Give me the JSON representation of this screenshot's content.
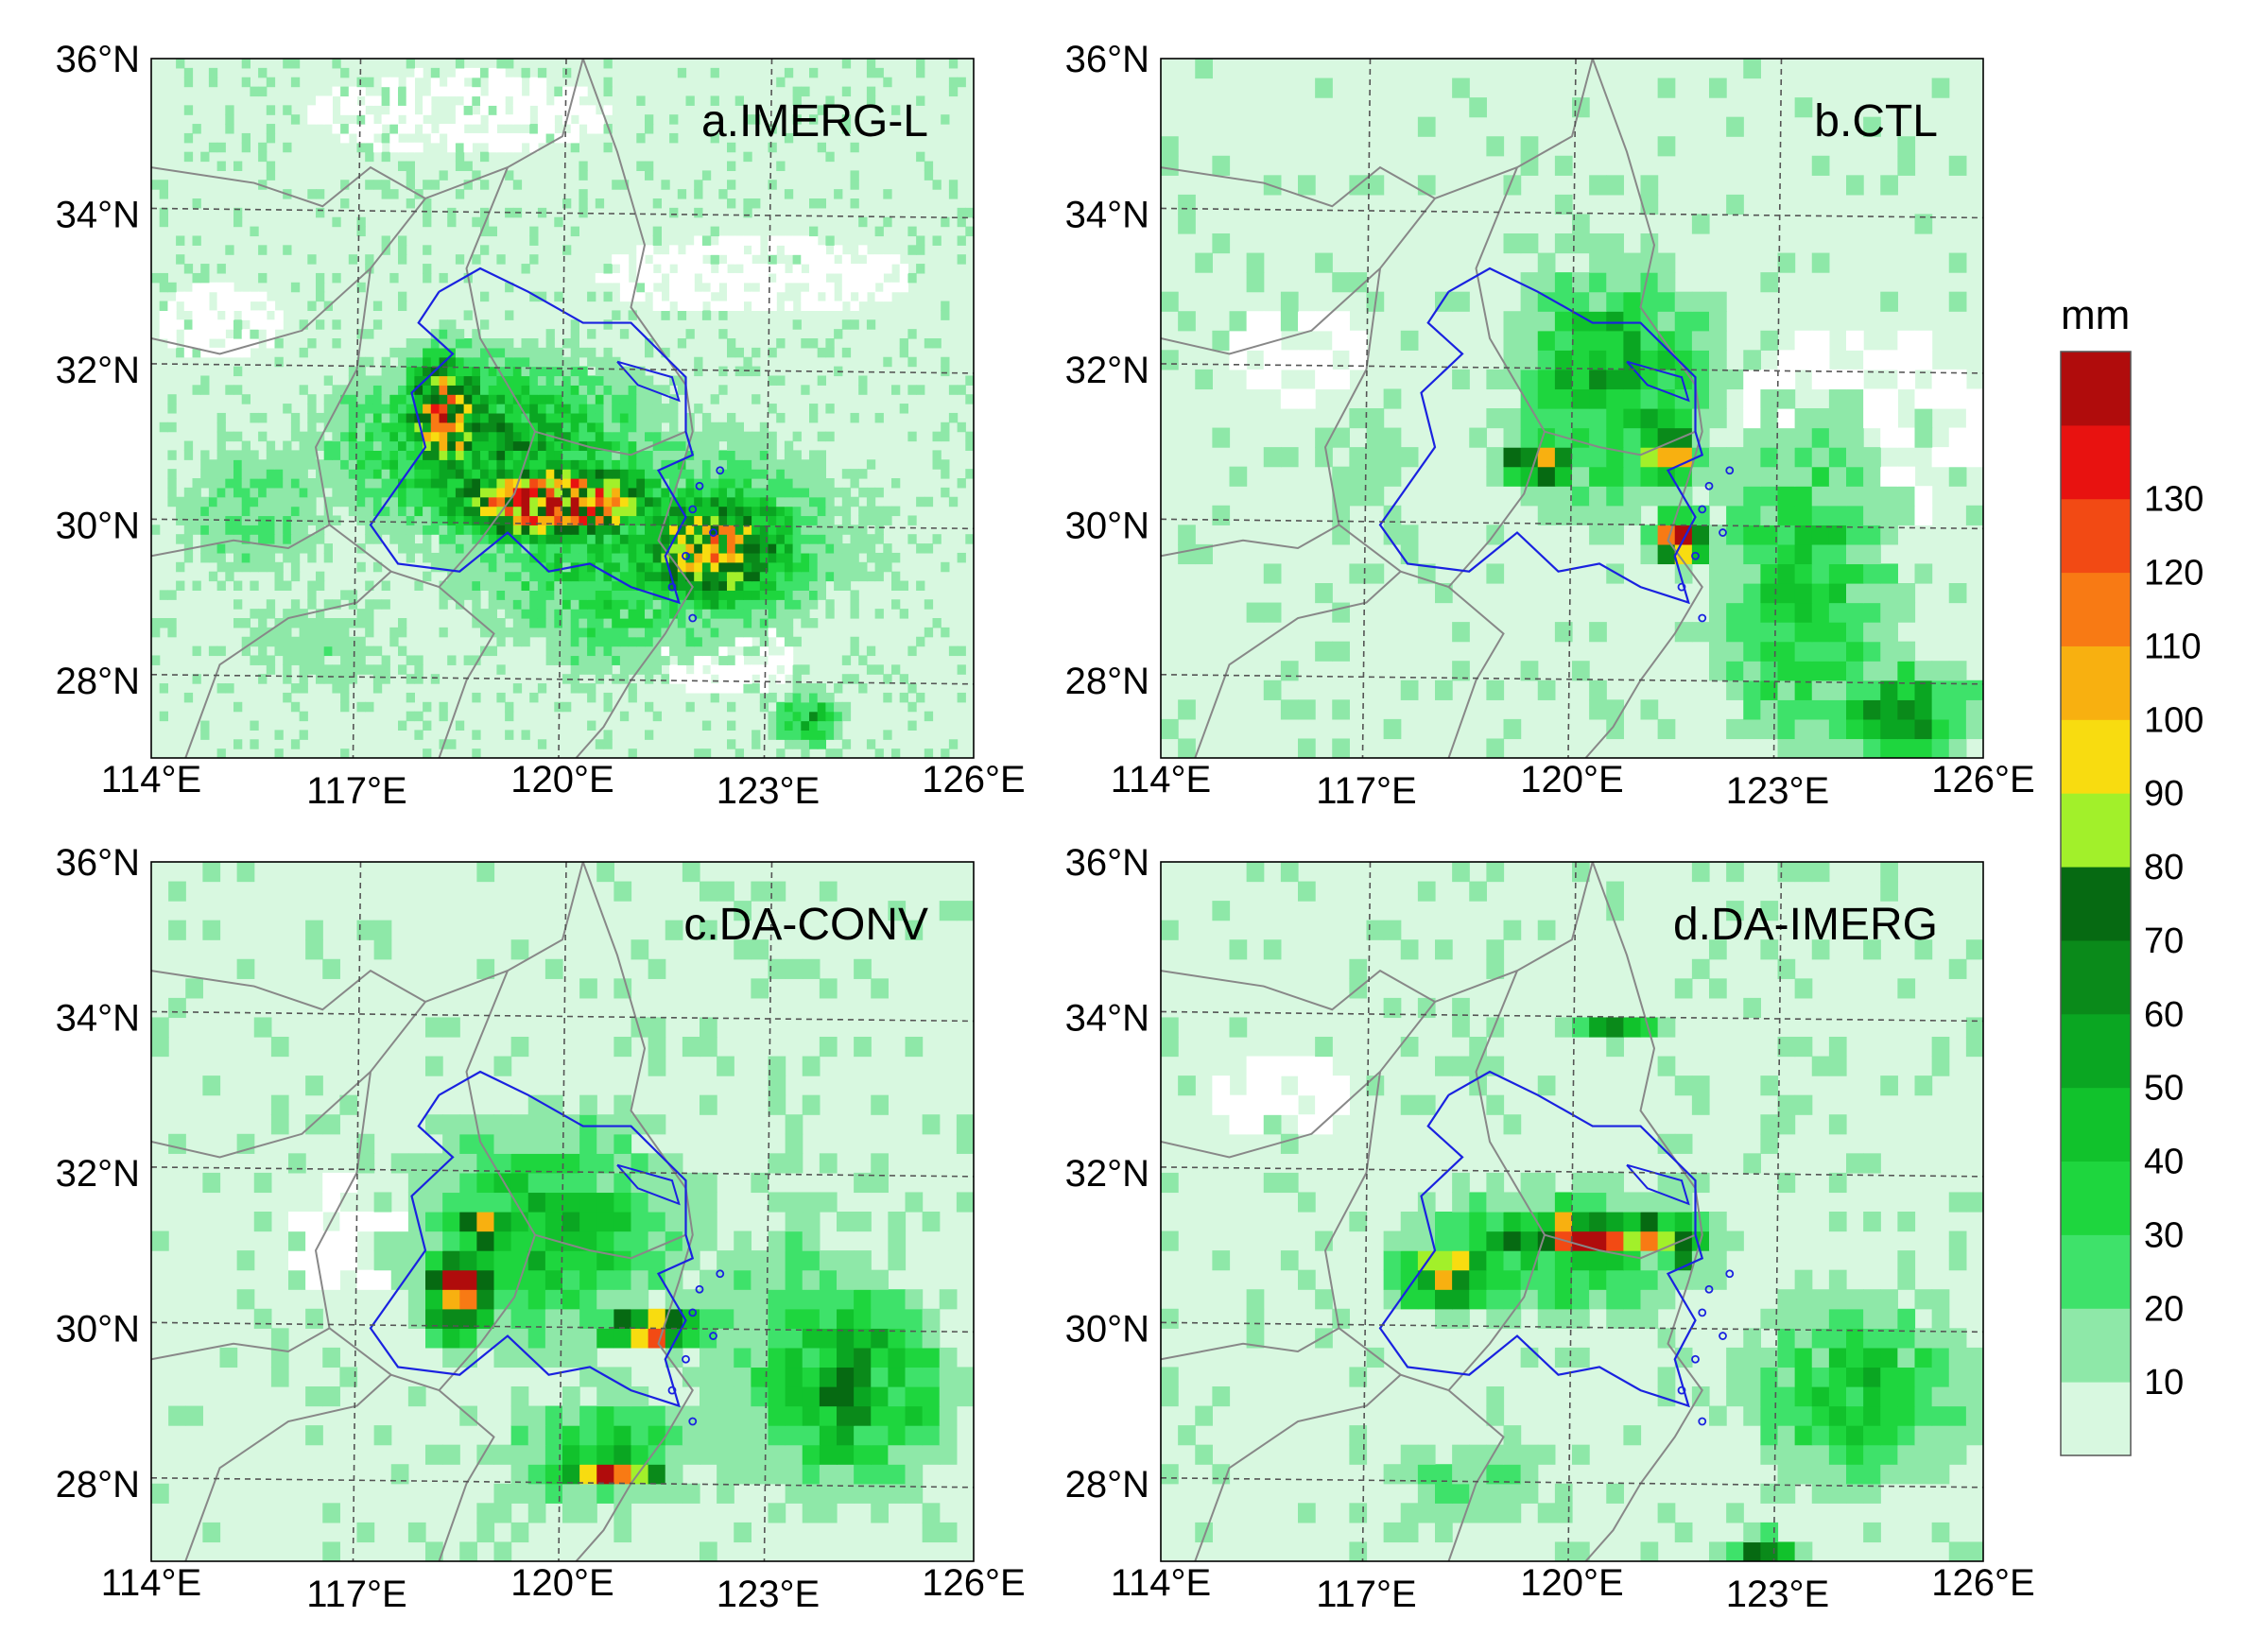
{
  "figure": {
    "panels": [
      {
        "id": "a",
        "label": "a.IMERG-L"
      },
      {
        "id": "b",
        "label": "b.CTL"
      },
      {
        "id": "c",
        "label": "c.DA-CONV"
      },
      {
        "id": "d",
        "label": "d.DA-IMERG"
      }
    ],
    "lat_ticks": [
      "36°N",
      "34°N",
      "32°N",
      "30°N",
      "28°N"
    ],
    "lon_ticks": [
      "114°E",
      "117°E",
      "120°E",
      "123°E",
      "126°E"
    ],
    "colorbar": {
      "unit": "mm",
      "ticks": [
        "10",
        "20",
        "30",
        "40",
        "50",
        "60",
        "70",
        "80",
        "90",
        "100",
        "110",
        "120",
        "130"
      ],
      "colors": [
        "#d8f8e0",
        "#8ee8a8",
        "#3ee26a",
        "#1ed63e",
        "#11c22c",
        "#0aa622",
        "#0a8a1a",
        "#066a12",
        "#a2f02a",
        "#f8dc10",
        "#f8b010",
        "#f87a14",
        "#f24a14",
        "#e81210",
        "#b00c0c"
      ]
    },
    "colors": {
      "province_border": "#888888",
      "basin_outline": "#1a22e0",
      "gridline": "#555555",
      "background": "#d8f8e0"
    },
    "panel_data": {
      "a": {
        "blobs": [
          [
            119.9,
            30.3,
            1.7,
            0.55,
            135
          ],
          [
            118.3,
            31.4,
            0.7,
            0.9,
            105
          ],
          [
            122.2,
            29.7,
            1.4,
            0.9,
            95
          ],
          [
            119.0,
            31.0,
            2.6,
            1.3,
            55
          ],
          [
            121.3,
            29.8,
            3.4,
            1.6,
            40
          ],
          [
            115.5,
            30.2,
            1.6,
            1.2,
            22
          ],
          [
            116.5,
            28.5,
            2.0,
            1.0,
            15
          ],
          [
            120.7,
            29.0,
            1.2,
            1.3,
            30
          ],
          [
            123.6,
            27.5,
            0.6,
            0.4,
            45
          ]
        ],
        "blank": [
          [
            118.5,
            35.3,
            2.2,
            0.55
          ],
          [
            122.8,
            33.2,
            2.3,
            0.5
          ],
          [
            122.4,
            28.3,
            1.0,
            0.5
          ],
          [
            115.0,
            32.6,
            0.9,
            0.5
          ]
        ]
      },
      "b": {
        "blobs": [
          [
            121.6,
            29.8,
            0.45,
            0.35,
            135
          ],
          [
            119.5,
            30.8,
            0.6,
            0.35,
            100
          ],
          [
            121.4,
            30.9,
            0.5,
            0.4,
            105
          ],
          [
            120.6,
            31.8,
            1.6,
            1.8,
            50
          ],
          [
            123.4,
            29.2,
            1.5,
            2.5,
            40
          ],
          [
            124.8,
            27.6,
            1.2,
            0.7,
            60
          ],
          [
            117.0,
            30.6,
            1.2,
            1.5,
            15
          ]
        ],
        "blank": [
          [
            124.2,
            31.2,
            1.8,
            1.4
          ],
          [
            116.0,
            32.2,
            1.0,
            0.6
          ]
        ]
      },
      "c": {
        "blobs": [
          [
            118.5,
            30.5,
            0.5,
            0.7,
            130
          ],
          [
            121.3,
            30.0,
            0.8,
            0.3,
            115
          ],
          [
            120.7,
            28.1,
            0.8,
            0.2,
            130
          ],
          [
            118.9,
            31.3,
            0.5,
            0.35,
            90
          ],
          [
            119.8,
            31.3,
            2.4,
            1.7,
            40
          ],
          [
            124.2,
            29.2,
            1.6,
            1.5,
            55
          ],
          [
            120.6,
            28.4,
            1.6,
            0.8,
            40
          ],
          [
            123.3,
            29.7,
            2.0,
            2.4,
            25
          ]
        ],
        "blank": [
          [
            116.8,
            31.2,
            0.9,
            0.8
          ]
        ]
      },
      "d": {
        "blobs": [
          [
            120.3,
            31.2,
            1.6,
            0.3,
            135
          ],
          [
            118.2,
            30.7,
            0.8,
            0.45,
            100
          ],
          [
            121.6,
            31.0,
            0.3,
            0.3,
            85
          ],
          [
            119.8,
            31.0,
            2.6,
            1.0,
            40
          ],
          [
            124.2,
            29.2,
            1.8,
            1.5,
            40
          ],
          [
            120.6,
            33.9,
            0.8,
            0.15,
            55
          ],
          [
            118.5,
            28.0,
            1.8,
            0.8,
            20
          ],
          [
            122.8,
            27.1,
            0.6,
            0.3,
            60
          ]
        ],
        "blank": [
          [
            115.8,
            33.0,
            1.0,
            0.6
          ]
        ]
      }
    }
  }
}
